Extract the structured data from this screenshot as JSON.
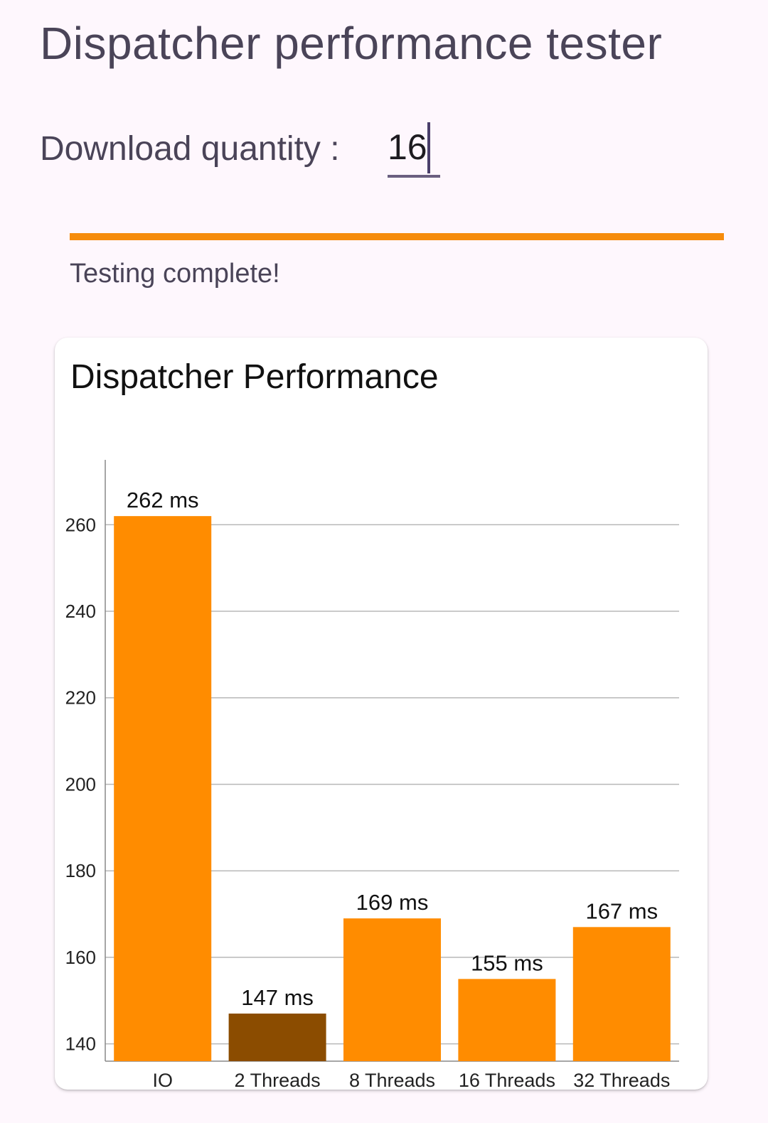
{
  "header": {
    "title": "Dispatcher performance tester"
  },
  "download": {
    "label": "Download quantity :",
    "value": "16"
  },
  "progress": {
    "fraction": 1.0,
    "color": "#f68c0c",
    "status": "Testing complete!"
  },
  "chart_data": {
    "type": "bar",
    "title": "Dispatcher Performance",
    "categories": [
      "IO",
      "2 Threads",
      "8 Threads",
      "16 Threads",
      "32 Threads"
    ],
    "values": [
      262,
      147,
      169,
      155,
      167
    ],
    "value_labels": [
      "262 ms",
      "147 ms",
      "169 ms",
      "155 ms",
      "167 ms"
    ],
    "colors": [
      "#ff8c00",
      "#8b4c00",
      "#ff8c00",
      "#ff8c00",
      "#ff8c00"
    ],
    "ylim": [
      136,
      275
    ],
    "yticks": [
      140,
      160,
      180,
      200,
      220,
      240,
      260
    ],
    "xlabel": "",
    "ylabel": "",
    "grid": true
  }
}
